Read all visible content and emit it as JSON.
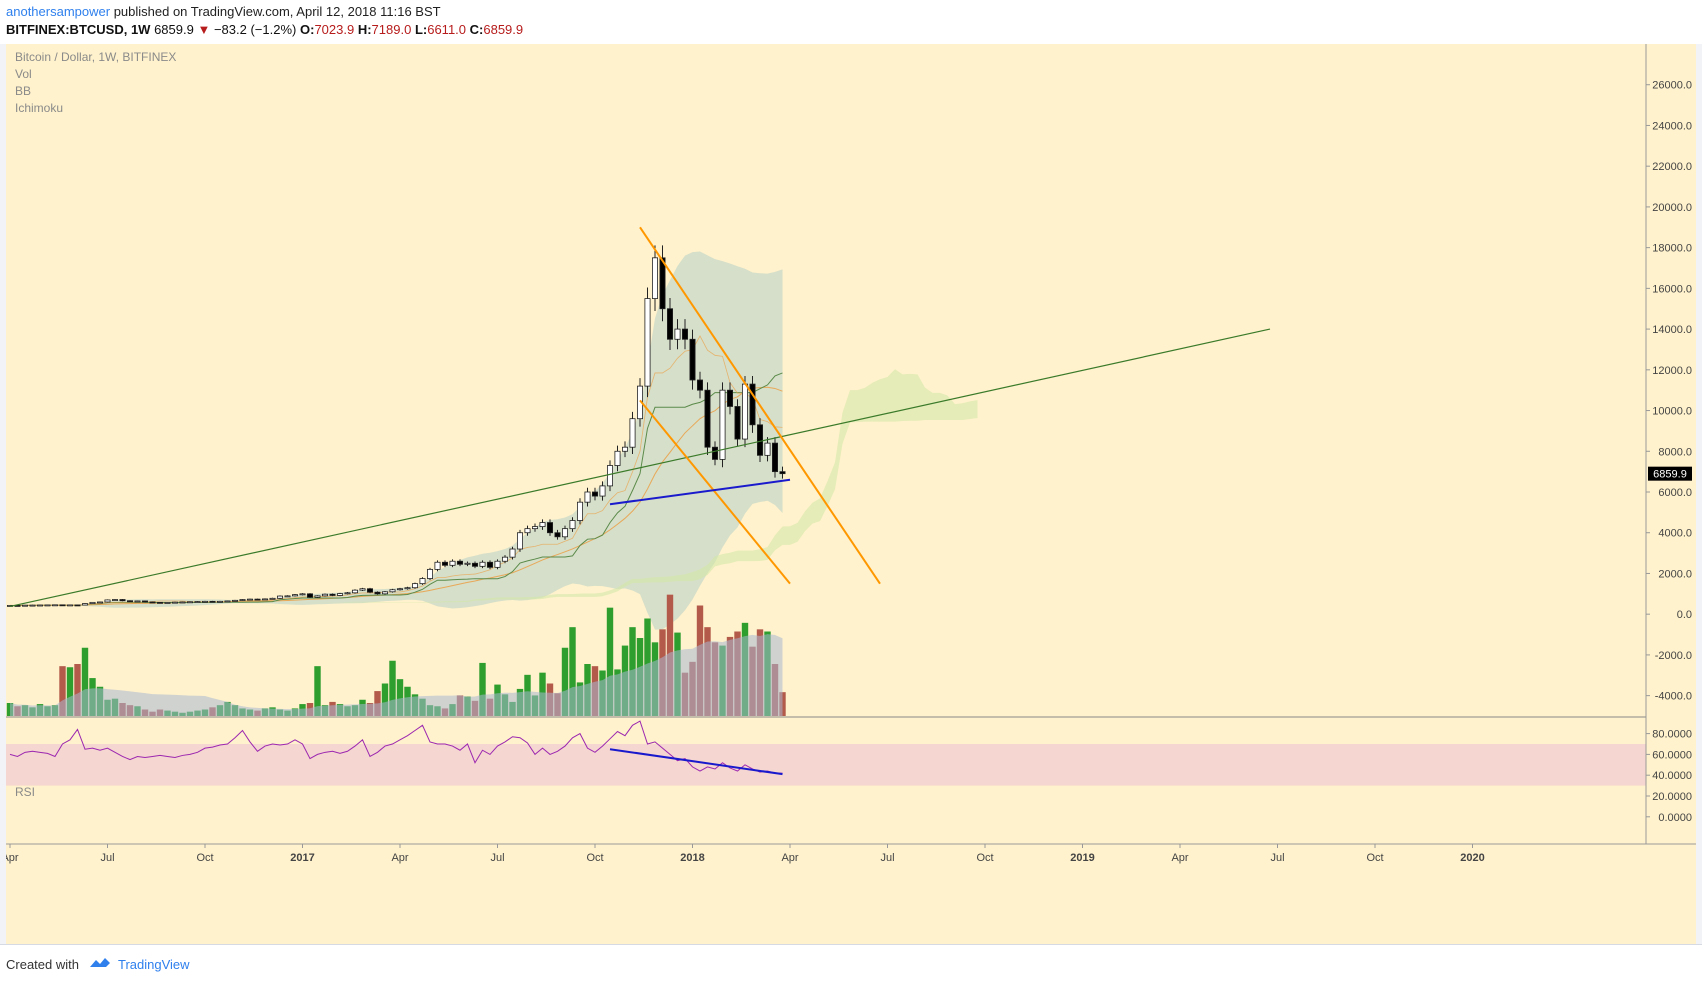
{
  "header": {
    "author": "anothersampower",
    "published_text": "published on TradingView.com, April 12, 2018 11:16 BST",
    "symbol": "BITFINEX:BTCUSD, 1W",
    "last": "6859.9",
    "change_arrow": "▼",
    "change": "−83.2 (−1.2%)",
    "o_label": "O:",
    "o_value": "7023.9",
    "h_label": "H:",
    "h_value": "7189.0",
    "l_label": "L:",
    "l_value": "6611.0",
    "c_label": "C:",
    "c_value": "6859.9"
  },
  "legend": {
    "title": "Bitcoin / Dollar, 1W, BITFINEX",
    "vol": "Vol",
    "bb": "BB",
    "ichimoku": "Ichimoku",
    "rsi": "RSI"
  },
  "footer": {
    "created_with": "Created with",
    "brand": "TradingView"
  },
  "colors": {
    "background": "#fff2cc",
    "candle_up": "#ffffff",
    "candle_down": "#000000",
    "volume_up": "#2e9e2e",
    "volume_down": "#b35a4a",
    "volume_ma": "#a9b8d4",
    "bb_fill": "#c8d8c8",
    "bb_upper": "#e8a858",
    "bb_basis": "#5a8a4a",
    "channel": "#ff9800",
    "trendline": "#3a7a2a",
    "support_line": "#1a1acd",
    "cloud": "#d4e8a8",
    "rsi_line": "#9c27b0",
    "rsi_band": "#f5d6d0",
    "price_badge": "#000000"
  },
  "chart_data": {
    "type": "candlestick",
    "title": "Bitcoin / Dollar, 1W, BITFINEX",
    "price_axis": {
      "ylim": [
        -5000,
        28000
      ],
      "ticks": [
        "26000.0",
        "24000.0",
        "22000.0",
        "20000.0",
        "18000.0",
        "16000.0",
        "14000.0",
        "12000.0",
        "10000.0",
        "8000.0",
        "6000.0",
        "4000.0",
        "2000.0",
        "0.0",
        "-2000.0",
        "-4000.0"
      ],
      "last_price_badge": "6859.9"
    },
    "rsi_axis": {
      "ylim": [
        -5,
        95
      ],
      "ticks": [
        "80.0000",
        "60.0000",
        "40.0000",
        "20.0000",
        "0.0000"
      ],
      "band": [
        30,
        70
      ]
    },
    "x_axis": {
      "ticks": [
        {
          "label": "Apr",
          "t": 0,
          "bold": false
        },
        {
          "label": "Jul",
          "t": 13,
          "bold": false
        },
        {
          "label": "Oct",
          "t": 26,
          "bold": false
        },
        {
          "label": "2017",
          "t": 39,
          "bold": true
        },
        {
          "label": "Apr",
          "t": 52,
          "bold": false
        },
        {
          "label": "Jul",
          "t": 65,
          "bold": false
        },
        {
          "label": "Oct",
          "t": 78,
          "bold": false
        },
        {
          "label": "2018",
          "t": 91,
          "bold": true
        },
        {
          "label": "Apr",
          "t": 104,
          "bold": false
        },
        {
          "label": "Jul",
          "t": 117,
          "bold": false
        },
        {
          "label": "Oct",
          "t": 130,
          "bold": false
        },
        {
          "label": "2019",
          "t": 143,
          "bold": true
        },
        {
          "label": "Apr",
          "t": 156,
          "bold": false
        },
        {
          "label": "Jul",
          "t": 169,
          "bold": false
        },
        {
          "label": "Oct",
          "t": 182,
          "bold": false
        },
        {
          "label": "2020",
          "t": 195,
          "bold": true
        }
      ]
    },
    "close": [
      430,
      425,
      440,
      445,
      450,
      455,
      460,
      440,
      455,
      450,
      520,
      580,
      600,
      700,
      720,
      660,
      620,
      650,
      600,
      580,
      570,
      575,
      590,
      600,
      610,
      620,
      630,
      615,
      630,
      650,
      680,
      720,
      740,
      720,
      750,
      780,
      890,
      900,
      960,
      1000,
      830,
      900,
      980,
      920,
      1010,
      1050,
      1180,
      1250,
      1080,
      1000,
      1100,
      1200,
      1250,
      1300,
      1500,
      1750,
      2200,
      2550,
      2400,
      2600,
      2450,
      2500,
      2350,
      2550,
      2300,
      2600,
      2800,
      3200,
      4000,
      4200,
      4300,
      4500,
      4000,
      3800,
      4200,
      4600,
      5500,
      6000,
      5800,
      6300,
      7300,
      8000,
      8200,
      9600,
      11200,
      15500,
      17500,
      15000,
      13500,
      14000,
      13500,
      11500,
      11000,
      8200,
      7600,
      11000,
      10200,
      8600,
      11300,
      9300,
      7800,
      8400,
      7000,
      6900
    ],
    "candles_note": "weekly candles; volume and RSI series below",
    "volume": [
      1.2,
      0.9,
      1.0,
      0.8,
      1.1,
      0.9,
      1.0,
      4.6,
      4.5,
      4.8,
      6.3,
      3.5,
      2.7,
      1.5,
      1.6,
      1.2,
      1.0,
      0.9,
      0.6,
      0.4,
      0.6,
      0.5,
      0.4,
      0.3,
      0.4,
      0.5,
      0.6,
      0.8,
      1.0,
      1.3,
      1.0,
      0.7,
      0.6,
      0.5,
      0.7,
      0.8,
      0.6,
      0.5,
      0.7,
      1.1,
      1.2,
      4.6,
      1.0,
      1.3,
      1.1,
      0.9,
      1.0,
      1.5,
      1.2,
      2.3,
      3.0,
      5.1,
      3.4,
      2.7,
      2.0,
      1.6,
      1.0,
      0.9,
      0.7,
      1.1,
      1.9,
      1.8,
      1.4,
      4.9,
      1.6,
      2.9,
      2.0,
      1.3,
      2.5,
      3.8,
      1.9,
      4.0,
      3.0,
      2.1,
      6.3,
      8.2,
      3.1,
      4.8,
      4.6,
      4.2,
      10.0,
      4.3,
      6.5,
      8.2,
      7.2,
      9.0,
      6.8,
      8.0,
      11.2,
      7.7,
      4.0,
      5.0,
      10.2,
      8.2,
      6.8,
      6.5,
      7.3,
      7.8,
      8.6,
      6.4,
      8.0,
      7.8,
      4.8,
      2.2
    ],
    "rsi": [
      60,
      58,
      62,
      63,
      62,
      61,
      58,
      70,
      74,
      84,
      65,
      66,
      64,
      66,
      62,
      58,
      55,
      58,
      57,
      58,
      59,
      58,
      57,
      59,
      60,
      62,
      66,
      67,
      69,
      70,
      76,
      83,
      72,
      63,
      68,
      70,
      69,
      70,
      74,
      70,
      56,
      60,
      62,
      63,
      61,
      63,
      68,
      74,
      58,
      62,
      68,
      70,
      74,
      78,
      83,
      88,
      72,
      70,
      70,
      68,
      64,
      70,
      52,
      64,
      60,
      68,
      72,
      77,
      76,
      71,
      60,
      66,
      60,
      63,
      68,
      76,
      80,
      66,
      62,
      68,
      75,
      82,
      78,
      88,
      92,
      70,
      72,
      66,
      60,
      54,
      56,
      48,
      44,
      48,
      46,
      52,
      47,
      44,
      50,
      46,
      43,
      44,
      42,
      42
    ]
  }
}
